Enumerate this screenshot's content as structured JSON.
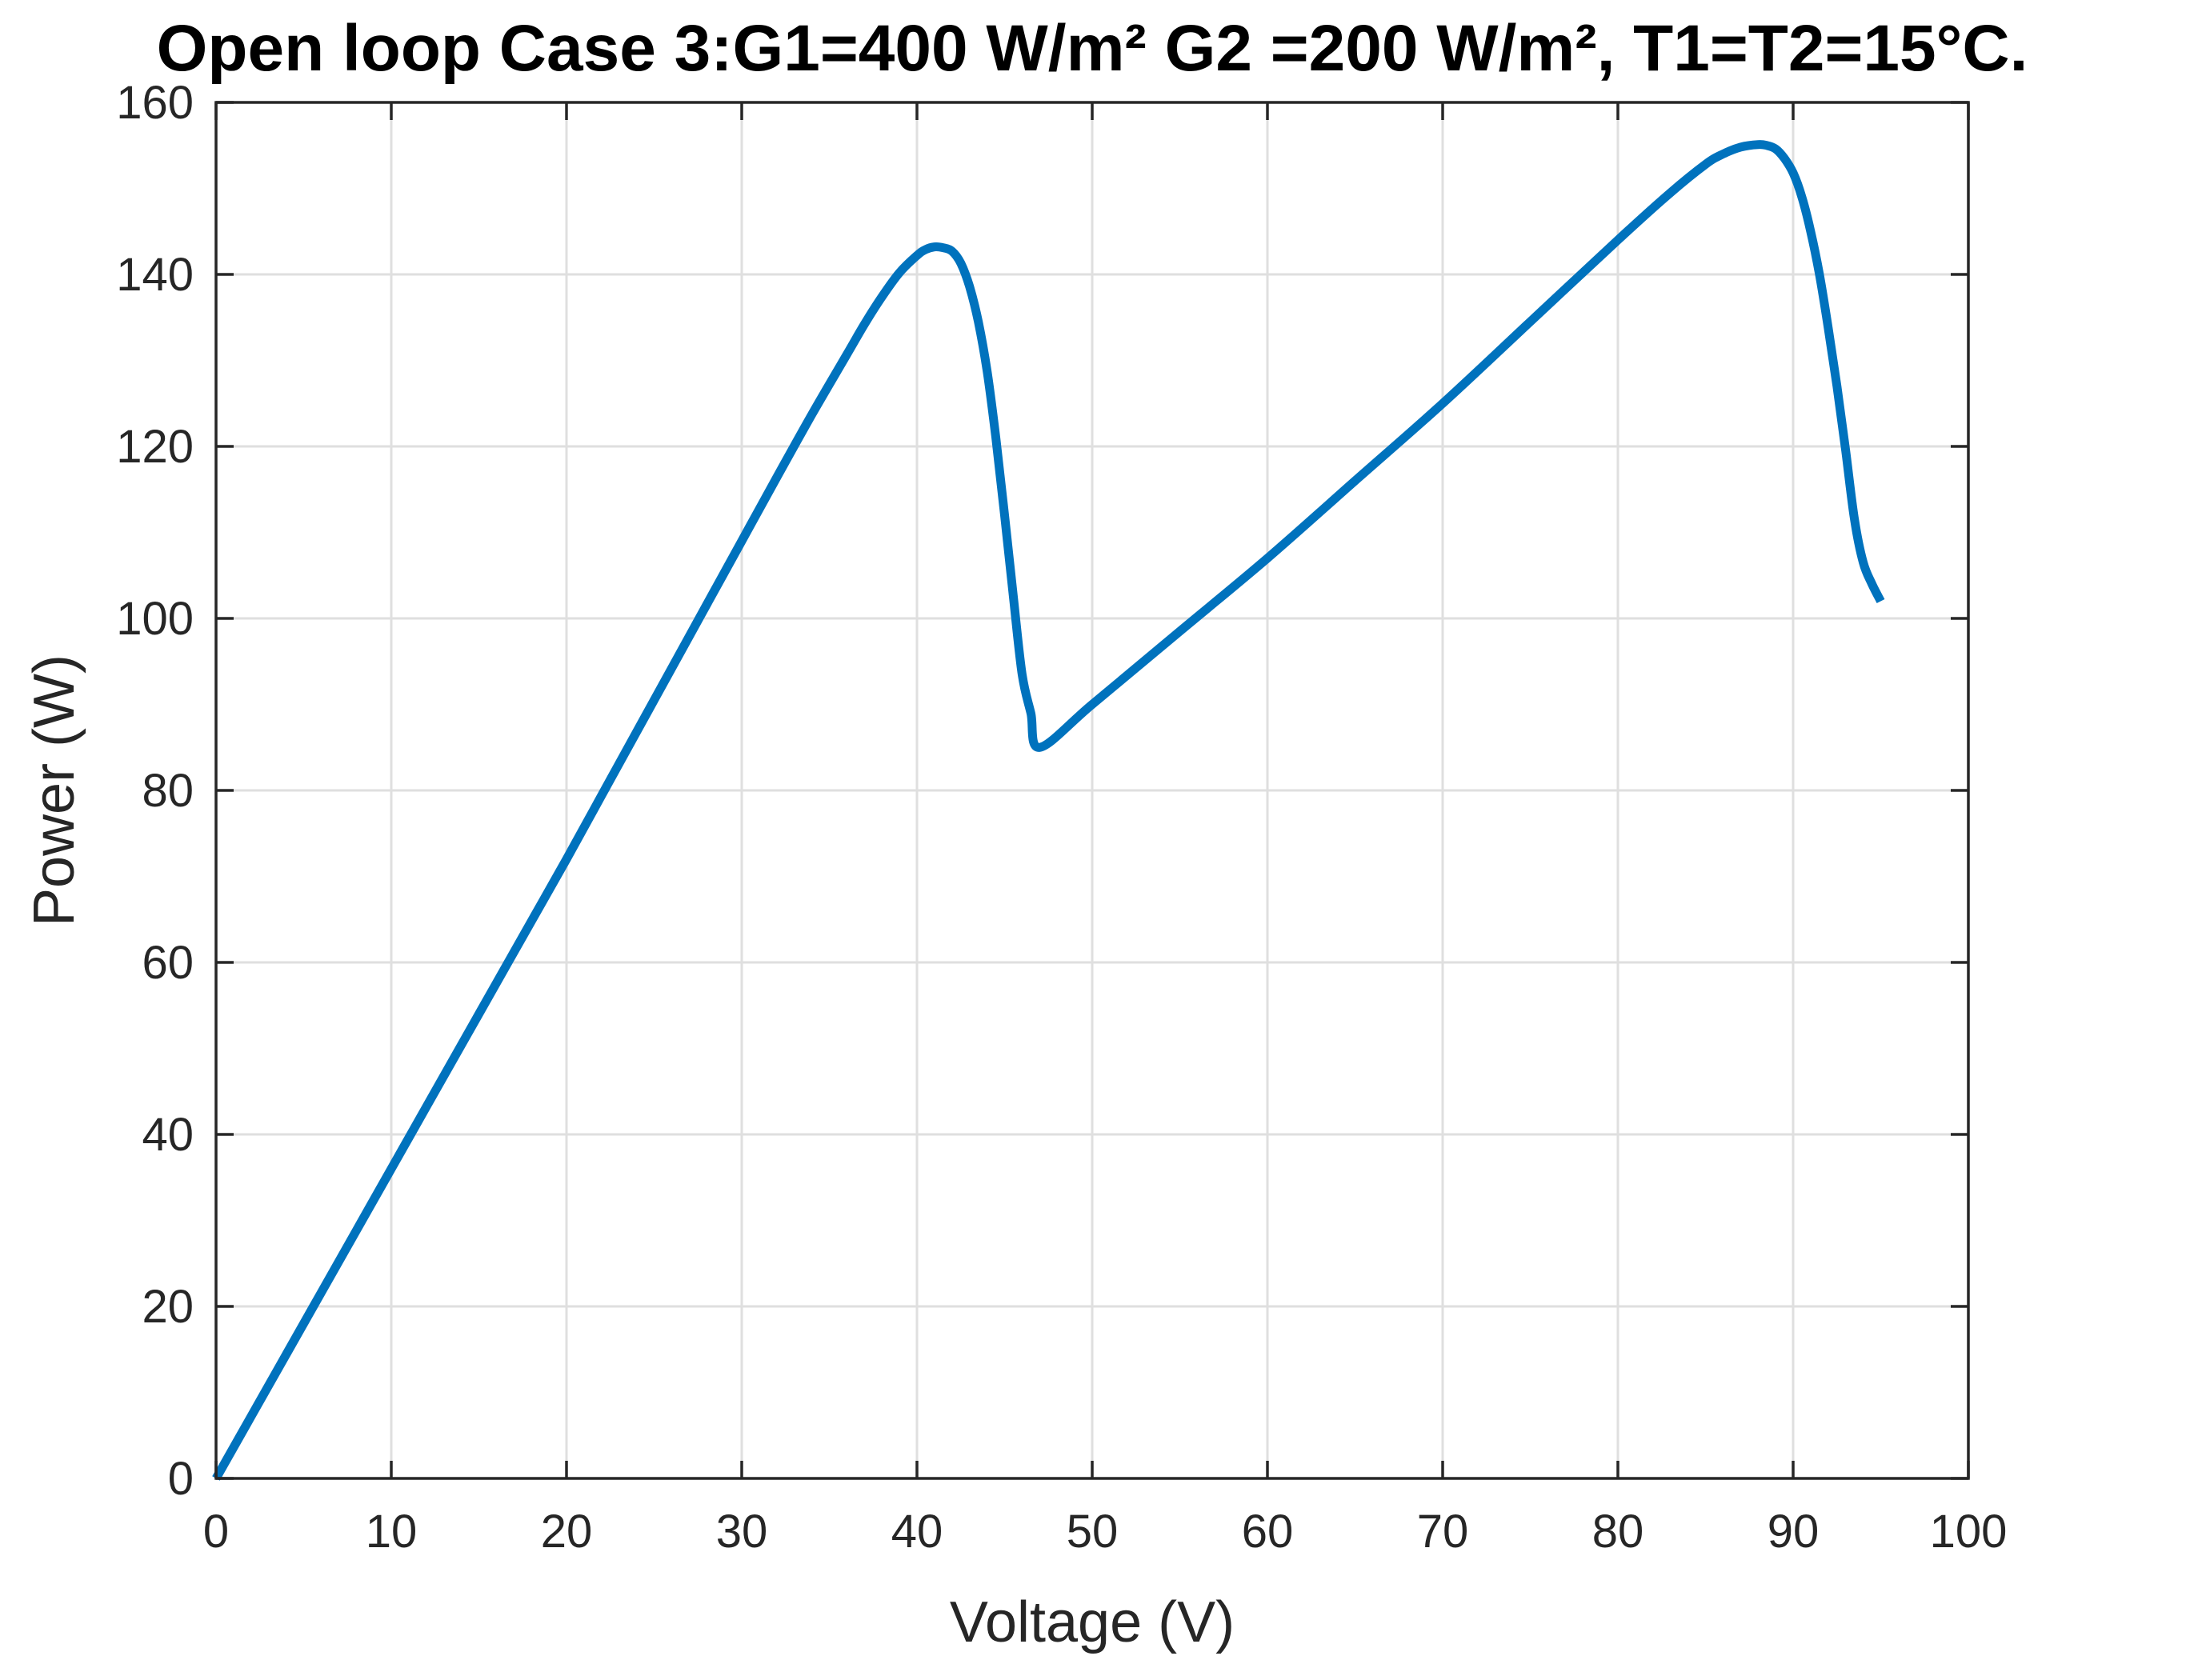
{
  "chart_data": {
    "type": "line",
    "title": "Open loop Case 3:G1=400 W/m² G2 =200 W/m², T1=T2=15°C.",
    "xlabel": "Voltage (V)",
    "ylabel": "Power (W)",
    "xlim": [
      0,
      100
    ],
    "ylim": [
      0,
      160
    ],
    "xticks": [
      0,
      10,
      20,
      30,
      40,
      50,
      60,
      70,
      80,
      90,
      100
    ],
    "yticks": [
      0,
      20,
      40,
      60,
      80,
      100,
      120,
      140,
      160
    ],
    "xtick_labels": [
      "0",
      "10",
      "20",
      "30",
      "40",
      "50",
      "60",
      "70",
      "80",
      "90",
      "100"
    ],
    "ytick_labels": [
      "0",
      "20",
      "40",
      "60",
      "80",
      "100",
      "120",
      "140",
      "160"
    ],
    "grid": true,
    "series": [
      {
        "color": "#0072BD",
        "x": [
          0,
          2,
          4,
          6,
          8,
          10,
          12,
          14,
          16,
          18,
          20,
          22,
          24,
          26,
          28,
          30,
          32,
          34,
          36,
          37,
          38,
          39,
          40,
          40.5,
          41,
          41.5,
          42,
          42.5,
          43,
          43.5,
          44,
          44.5,
          45,
          45.5,
          46,
          46.5,
          47,
          50,
          55,
          60,
          65,
          70,
          75,
          80,
          83,
          85,
          86,
          87,
          88,
          88.5,
          89,
          89.5,
          90,
          90.5,
          91,
          91.5,
          92,
          92.5,
          93,
          93.5,
          94,
          94.5,
          95
        ],
        "y": [
          0,
          7.2,
          14.4,
          21.6,
          28.8,
          36,
          43.2,
          50.4,
          57.6,
          64.8,
          72,
          79.4,
          86.8,
          94.2,
          101.6,
          109,
          116.4,
          123.7,
          130.7,
          134.2,
          137.4,
          140.2,
          142.2,
          142.9,
          143.2,
          143.1,
          142.7,
          141.3,
          138.6,
          134.5,
          128.8,
          121,
          112,
          102.5,
          93.5,
          89,
          85,
          90,
          98.5,
          107,
          116,
          125,
          134.5,
          144,
          149.5,
          152.8,
          154,
          154.8,
          155.1,
          155,
          154.6,
          153.5,
          151.8,
          149,
          145,
          140,
          133.8,
          127,
          119.5,
          111.5,
          106.5,
          104,
          102
        ]
      }
    ]
  }
}
